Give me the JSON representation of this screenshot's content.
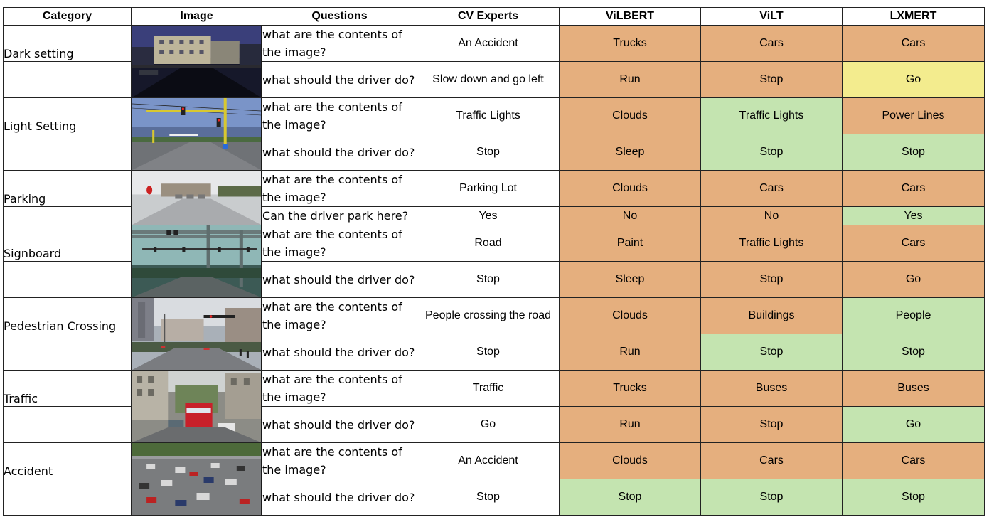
{
  "headers": {
    "category": "Category",
    "image": "Image",
    "questions": "Questions",
    "experts": "CV Experts",
    "vilbert": "ViLBERT",
    "vilt": "ViLT",
    "lxmert": "LXMERT"
  },
  "colors": {
    "wrong": "#E5AF7E",
    "correct": "#C4E4B0",
    "partial": "#F3EC8E"
  },
  "groups": [
    {
      "category": "Dark setting",
      "image_icon": "night-street-photo",
      "rows": [
        {
          "question": "what are the contents of the image?",
          "expert": "An Accident",
          "vilbert": "Trucks",
          "vilt": "Cars",
          "lxmert": "Cars",
          "status": [
            "wrong",
            "wrong",
            "wrong"
          ]
        },
        {
          "question": "what should the driver do?",
          "expert": "Slow down and go left",
          "vilbert": "Run",
          "vilt": "Stop",
          "lxmert": "Go",
          "status": [
            "wrong",
            "wrong",
            "partial"
          ]
        }
      ]
    },
    {
      "category": "Light Setting",
      "image_icon": "intersection-traffic-lights-photo",
      "rows": [
        {
          "question": "what are the contents of the image?",
          "expert": "Traffic Lights",
          "vilbert": "Clouds",
          "vilt": "Traffic Lights",
          "lxmert": "Power Lines",
          "status": [
            "wrong",
            "correct",
            "wrong"
          ]
        },
        {
          "question": "what should the driver do?",
          "expert": "Stop",
          "vilbert": "Sleep",
          "vilt": "Stop",
          "lxmert": "Stop",
          "status": [
            "wrong",
            "correct",
            "correct"
          ]
        }
      ]
    },
    {
      "category": "Parking",
      "image_icon": "parking-lot-photo",
      "rows": [
        {
          "question": "what are the contents of the image?",
          "expert": "Parking Lot",
          "vilbert": "Clouds",
          "vilt": "Cars",
          "lxmert": "Cars",
          "status": [
            "wrong",
            "wrong",
            "wrong"
          ]
        },
        {
          "question": "Can the driver park here?",
          "expert": "Yes",
          "vilbert": "No",
          "vilt": "No",
          "lxmert": "Yes",
          "status": [
            "wrong",
            "wrong",
            "correct"
          ]
        }
      ]
    },
    {
      "category": "Signboard",
      "image_icon": "overhead-signal-gantry-photo",
      "rows": [
        {
          "question": "what are the contents of the image?",
          "expert": "Road",
          "vilbert": "Paint",
          "vilt": "Traffic Lights",
          "lxmert": "Cars",
          "status": [
            "wrong",
            "wrong",
            "wrong"
          ]
        },
        {
          "question": "what should the driver do?",
          "expert": "Stop",
          "vilbert": "Sleep",
          "vilt": "Stop",
          "lxmert": "Go",
          "status": [
            "wrong",
            "wrong",
            "wrong"
          ]
        }
      ]
    },
    {
      "category": "Pedestrian Crossing",
      "image_icon": "pedestrian-crossing-photo",
      "rows": [
        {
          "question": "what are the contents of the image?",
          "expert": "People crossing the road",
          "vilbert": "Clouds",
          "vilt": "Buildings",
          "lxmert": "People",
          "status": [
            "wrong",
            "wrong",
            "correct"
          ]
        },
        {
          "question": "what should the driver do?",
          "expert": "Stop",
          "vilbert": "Run",
          "vilt": "Stop",
          "lxmert": "Stop",
          "status": [
            "wrong",
            "correct",
            "correct"
          ]
        }
      ]
    },
    {
      "category": "Traffic",
      "image_icon": "city-traffic-buses-photo",
      "rows": [
        {
          "question": "what are the contents of the image?",
          "expert": "Traffic",
          "vilbert": "Trucks",
          "vilt": "Buses",
          "lxmert": "Buses",
          "status": [
            "wrong",
            "wrong",
            "wrong"
          ]
        },
        {
          "question": "what should the driver do?",
          "expert": "Go",
          "vilbert": "Run",
          "vilt": "Stop",
          "lxmert": "Go",
          "status": [
            "wrong",
            "wrong",
            "correct"
          ]
        }
      ]
    },
    {
      "category": "Accident",
      "image_icon": "crowded-road-accident-photo",
      "rows": [
        {
          "question": "what are the contents of the image?",
          "expert": "An Accident",
          "vilbert": "Clouds",
          "vilt": "Cars",
          "lxmert": "Cars",
          "status": [
            "wrong",
            "wrong",
            "wrong"
          ]
        },
        {
          "question": "what should the driver do?",
          "expert": "Stop",
          "vilbert": "Stop",
          "vilt": "Stop",
          "lxmert": "Stop",
          "status": [
            "correct",
            "correct",
            "correct"
          ]
        }
      ]
    }
  ]
}
